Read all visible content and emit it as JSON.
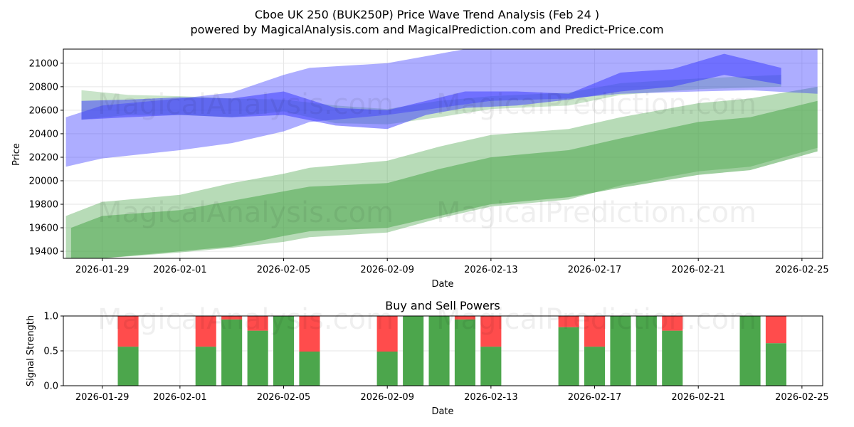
{
  "title_line1": "Cboe UK 250 (BUK250P) Price Wave Trend Analysis (Feb 24 )",
  "title_line2": "powered by MagicalAnalysis.com and MagicalPrediction.com and Predict-Price.com",
  "watermarks": [
    "MagicalAnalysis.com",
    "MagicalPrediction.com"
  ],
  "colors": {
    "green": "#4ca64c",
    "blue": "#3333ff",
    "buy": "#4ca64c",
    "sell": "#ff4c4c",
    "grid": "#e6e6e6"
  },
  "chart_data": [
    {
      "type": "area",
      "title": "",
      "xlabel": "Date",
      "ylabel": "Price",
      "x_ticks": [
        "2026-01-29",
        "2026-02-01",
        "2026-02-05",
        "2026-02-09",
        "2026-02-13",
        "2026-02-17",
        "2026-02-21",
        "2026-02-25"
      ],
      "x_tick_days": [
        0,
        3,
        7,
        11,
        15,
        19,
        23,
        27
      ],
      "xlim_days": [
        -1.5,
        27.8
      ],
      "ylim": [
        19340,
        21120
      ],
      "y_ticks": [
        19400,
        19600,
        19800,
        20000,
        20200,
        20400,
        20600,
        20800,
        21000
      ],
      "series": [
        {
          "name": "green-outer-band",
          "color": "#4ca64c",
          "opacity": 0.4,
          "x": [
            -1.4,
            0,
            3,
            5,
            7,
            8,
            11,
            13,
            15,
            18,
            20,
            23,
            25,
            27.6
          ],
          "upper": [
            19700,
            19820,
            19880,
            19980,
            20060,
            20110,
            20170,
            20290,
            20390,
            20440,
            20540,
            20660,
            20700,
            20800
          ],
          "lower": [
            19280,
            19340,
            19390,
            19430,
            19480,
            19520,
            19560,
            19680,
            19780,
            19840,
            19960,
            20080,
            20120,
            20280
          ]
        },
        {
          "name": "green-inner-band",
          "color": "#4ca64c",
          "opacity": 0.55,
          "x": [
            -1.2,
            0,
            3,
            5,
            7,
            8,
            11,
            13,
            15,
            18,
            20,
            23,
            25,
            27.6
          ],
          "upper": [
            19600,
            19700,
            19750,
            19830,
            19910,
            19950,
            19980,
            20100,
            20200,
            20260,
            20360,
            20500,
            20540,
            20680
          ],
          "lower": [
            19300,
            19340,
            19400,
            19440,
            19530,
            19570,
            19600,
            19700,
            19800,
            19860,
            19940,
            20050,
            20090,
            20250
          ]
        },
        {
          "name": "green-upper-band",
          "color": "#4ca64c",
          "opacity": 0.3,
          "x": [
            -0.8,
            1,
            3,
            5,
            7,
            9,
            11,
            13,
            15,
            18,
            20,
            23,
            26.2
          ],
          "upper": [
            20770,
            20730,
            20720,
            20700,
            20690,
            20640,
            20610,
            20680,
            20720,
            20750,
            20830,
            20870,
            20900
          ],
          "lower": [
            20520,
            20560,
            20560,
            20540,
            20590,
            20490,
            20480,
            20540,
            20610,
            20640,
            20730,
            20780,
            20800
          ]
        },
        {
          "name": "blue-wide-band",
          "color": "#3333ff",
          "opacity": 0.4,
          "x": [
            -1.4,
            0,
            3,
            5,
            7,
            8,
            11,
            13,
            15,
            18,
            20,
            23,
            25,
            27.6
          ],
          "upper": [
            20540,
            20640,
            20700,
            20750,
            20900,
            20960,
            21000,
            21080,
            21160,
            21160,
            21140,
            21120,
            21120,
            21120
          ],
          "lower": [
            20120,
            20190,
            20260,
            20320,
            20420,
            20500,
            20560,
            20620,
            20680,
            20700,
            20740,
            20760,
            20770,
            20740
          ]
        },
        {
          "name": "blue-core-band",
          "color": "#3333ff",
          "opacity": 0.5,
          "x": [
            -0.8,
            1,
            3,
            5,
            7,
            9,
            11,
            12.5,
            14,
            16,
            18,
            20,
            22,
            24,
            26.2
          ],
          "upper": [
            20680,
            20690,
            20710,
            20700,
            20760,
            20620,
            20600,
            20680,
            20760,
            20760,
            20740,
            20920,
            20950,
            21080,
            20960
          ],
          "lower": [
            20520,
            20540,
            20560,
            20540,
            20560,
            20470,
            20440,
            20560,
            20620,
            20640,
            20690,
            20760,
            20800,
            20900,
            20820
          ]
        }
      ]
    },
    {
      "type": "bar",
      "title": "Buy and Sell Powers",
      "xlabel": "Date",
      "ylabel": "Signal Strength",
      "ylim": [
        0,
        1.0
      ],
      "y_ticks": [
        0.0,
        0.5,
        1.0
      ],
      "y_tick_labels": [
        "0.0",
        "0.5",
        "1.0"
      ],
      "x_ticks": [
        "2026-01-29",
        "2026-02-01",
        "2026-02-05",
        "2026-02-09",
        "2026-02-13",
        "2026-02-17",
        "2026-02-21",
        "2026-02-25"
      ],
      "x_tick_days": [
        0,
        3,
        7,
        11,
        15,
        19,
        23,
        27
      ],
      "xlim_days": [
        -1.5,
        27.8
      ],
      "days": [
        1,
        4,
        5,
        6,
        7,
        8,
        11,
        12,
        13,
        14,
        15,
        18,
        19,
        20,
        21,
        22,
        25,
        26
      ],
      "buy": [
        0.56,
        0.56,
        0.95,
        0.79,
        1.0,
        0.49,
        0.49,
        1.0,
        1.0,
        0.95,
        0.56,
        0.84,
        0.56,
        1.0,
        1.0,
        0.79,
        1.0,
        0.61
      ],
      "sell": [
        0.44,
        0.44,
        0.05,
        0.21,
        0.0,
        0.51,
        0.51,
        0.0,
        0.0,
        0.05,
        0.44,
        0.16,
        0.44,
        0.0,
        0.0,
        0.21,
        0.0,
        0.39
      ]
    }
  ]
}
